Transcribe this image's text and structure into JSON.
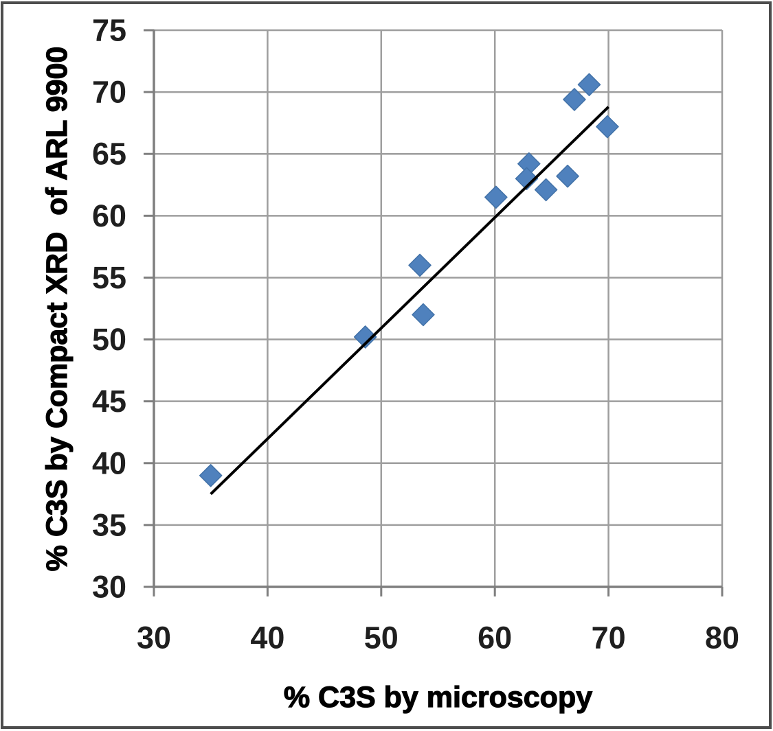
{
  "figure": {
    "kind": "scatter-chart-screenshot",
    "background": "#ffffff"
  },
  "colors": {
    "marker_fill": "#4f81bd",
    "marker_edge": "#4272a8",
    "trendline": "#000000",
    "gridline": "#9e9e9e",
    "axis_line": "#7f7f7f",
    "tick_text": "#1f1f1f",
    "title_text": "#000000",
    "outer_border": "#4d4d4d"
  },
  "chart_data": {
    "type": "scatter",
    "title": "",
    "xlabel": "% C3S by microscopy",
    "ylabel": "% C3S by Compact XRD  of ARL 9900",
    "xlim": [
      30,
      80
    ],
    "ylim": [
      30,
      75
    ],
    "xticks": [
      30,
      40,
      50,
      60,
      70,
      80
    ],
    "yticks": [
      30,
      35,
      40,
      45,
      50,
      55,
      60,
      65,
      70,
      75
    ],
    "grid": true,
    "legend": "none",
    "marker": "diamond",
    "points": [
      {
        "x": 35.0,
        "y": 39.0
      },
      {
        "x": 48.6,
        "y": 50.2
      },
      {
        "x": 53.4,
        "y": 56.0
      },
      {
        "x": 53.7,
        "y": 52.0
      },
      {
        "x": 60.1,
        "y": 61.5
      },
      {
        "x": 63.0,
        "y": 64.2
      },
      {
        "x": 62.8,
        "y": 63.0
      },
      {
        "x": 64.5,
        "y": 62.1
      },
      {
        "x": 66.4,
        "y": 63.2
      },
      {
        "x": 67.0,
        "y": 69.4
      },
      {
        "x": 68.3,
        "y": 70.6
      },
      {
        "x": 69.9,
        "y": 67.2
      }
    ],
    "trendline": {
      "x1": 35.0,
      "y1": 37.5,
      "x2": 70.0,
      "y2": 68.8
    }
  }
}
